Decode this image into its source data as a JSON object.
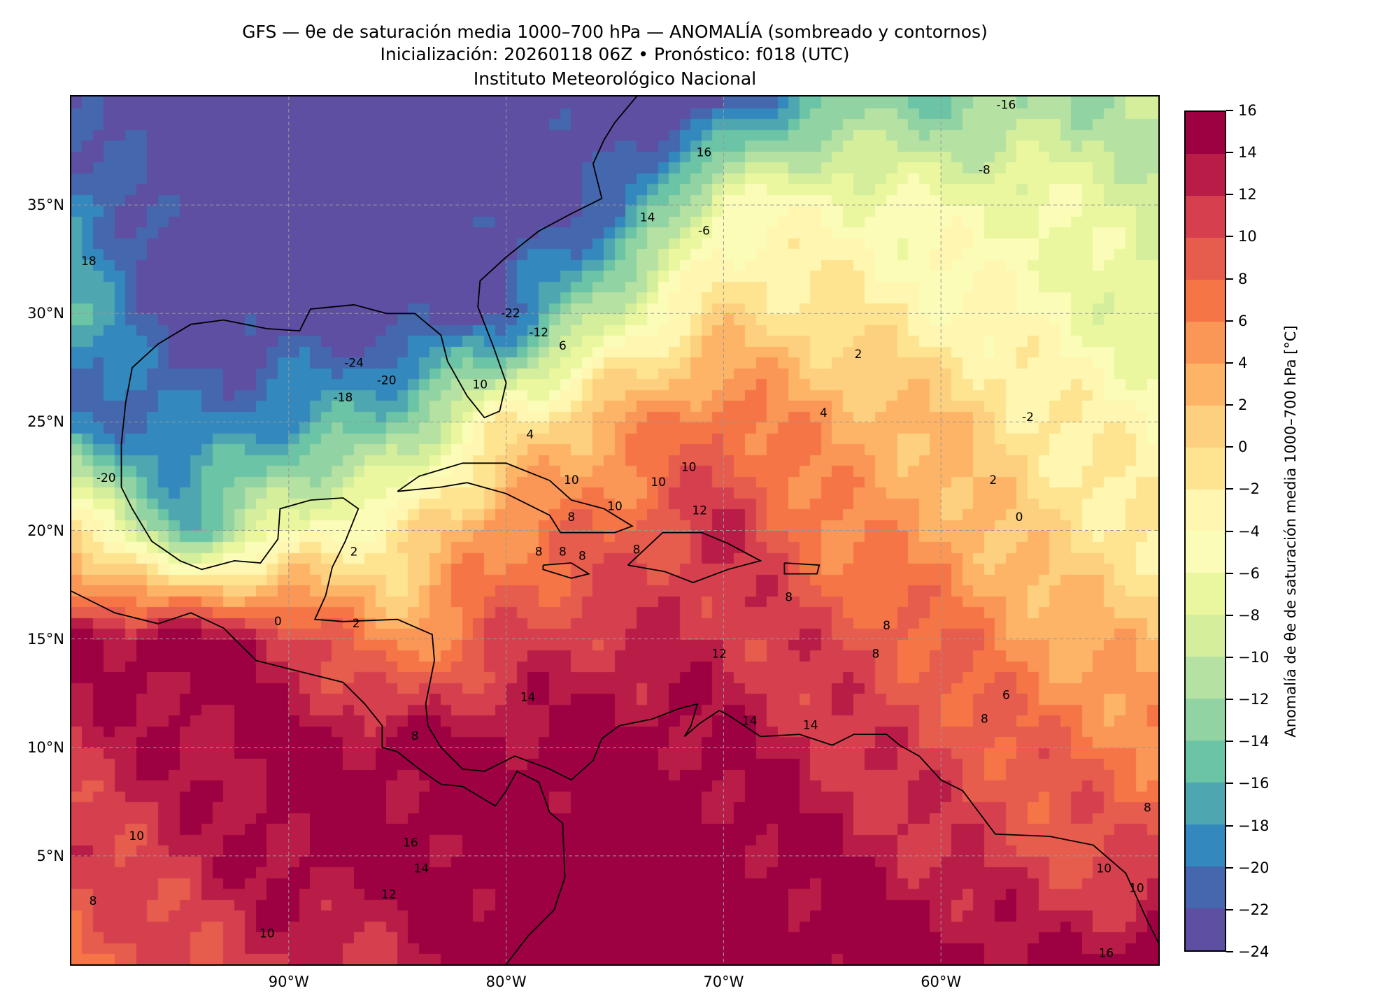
{
  "header": {
    "title_line1": "GFS — θe de saturación media 1000–700 hPa — ANOMALÍA (sombreado y contornos)",
    "title_line2": "Inicialización: 20260118 06Z   •   Pronóstico: f018 (UTC)",
    "title_line3": "Instituto Meteorológico Nacional"
  },
  "map": {
    "extent_lon": [
      -100,
      -50
    ],
    "extent_lat": [
      0,
      40
    ],
    "lon_ticks": [
      {
        "value": -90,
        "label": "90°W"
      },
      {
        "value": -80,
        "label": "80°W"
      },
      {
        "value": -70,
        "label": "70°W"
      },
      {
        "value": -60,
        "label": "60°W"
      }
    ],
    "lat_ticks": [
      {
        "value": 35,
        "label": "35°N"
      },
      {
        "value": 30,
        "label": "30°N"
      },
      {
        "value": 25,
        "label": "25°N"
      },
      {
        "value": 20,
        "label": "20°N"
      },
      {
        "value": 15,
        "label": "15°N"
      },
      {
        "value": 10,
        "label": "10°N"
      },
      {
        "value": 5,
        "label": "5°N"
      }
    ],
    "gridlines": true
  },
  "chart_data": {
    "type": "heatmap",
    "title": "GFS — θe de saturación media 1000–700 hPa — ANOMALÍA (sombreado y contornos)",
    "units": "°C",
    "grid_lons": [
      -100,
      -95,
      -90,
      -85,
      -80,
      -75,
      -70,
      -65,
      -60,
      -55,
      -50
    ],
    "grid_lats": [
      40,
      35,
      30,
      25,
      20,
      15,
      10,
      5,
      0
    ],
    "values": [
      [
        -24,
        -24,
        -24,
        -24,
        -24,
        -24,
        -24,
        -14,
        -14,
        -12,
        -11
      ],
      [
        -18,
        -24,
        -24,
        -24,
        -24,
        -22,
        -5,
        -5,
        -6,
        -6,
        -9
      ],
      [
        -16,
        -24,
        -24,
        -24,
        -22,
        -8,
        0,
        -1,
        -3,
        -5,
        -8
      ],
      [
        -20,
        -20,
        -18,
        -14,
        -2,
        4,
        8,
        4,
        2,
        -2,
        -4
      ],
      [
        0,
        -16,
        -6,
        -2,
        6,
        8,
        12,
        6,
        4,
        0,
        -2
      ],
      [
        14,
        16,
        12,
        4,
        10,
        12,
        12,
        10,
        8,
        4,
        2
      ],
      [
        12,
        14,
        15,
        15,
        15,
        16,
        14,
        12,
        10,
        8,
        6
      ],
      [
        10,
        12,
        15,
        15,
        16,
        16,
        16,
        14,
        12,
        10,
        10
      ],
      [
        8,
        10,
        12,
        12,
        16,
        16,
        16,
        16,
        16,
        14,
        16
      ]
    ],
    "levels": [
      -24,
      -22,
      -20,
      -18,
      -16,
      -14,
      -12,
      -10,
      -8,
      -6,
      -4,
      -2,
      0,
      2,
      4,
      6,
      8,
      10,
      12,
      14,
      16
    ],
    "colors": [
      "#5e4fa2",
      "#4467ae",
      "#3389bd",
      "#4ea6b0",
      "#6bc4a5",
      "#92d3a3",
      "#b5e1a2",
      "#d5ee9c",
      "#eaf79f",
      "#fafcb7",
      "#fff7b1",
      "#fee491",
      "#fdd07f",
      "#fdb466",
      "#fa9656",
      "#f57547",
      "#e65c4d",
      "#d6404e",
      "#b91d47",
      "#9e0142"
    ],
    "contour_labels": [
      {
        "lon": -57.0,
        "lat": 39.6,
        "text": "-16"
      },
      {
        "lon": -58.0,
        "lat": 36.6,
        "text": "-8"
      },
      {
        "lon": -70.9,
        "lat": 37.4,
        "text": "16"
      },
      {
        "lon": -73.5,
        "lat": 34.4,
        "text": "14"
      },
      {
        "lon": -70.9,
        "lat": 33.8,
        "text": "-6"
      },
      {
        "lon": -99.2,
        "lat": 32.4,
        "text": "18"
      },
      {
        "lon": -79.8,
        "lat": 30.0,
        "text": "-22"
      },
      {
        "lon": -78.5,
        "lat": 29.1,
        "text": "-12"
      },
      {
        "lon": -77.4,
        "lat": 28.5,
        "text": "6"
      },
      {
        "lon": -87.0,
        "lat": 27.7,
        "text": "-24"
      },
      {
        "lon": -85.5,
        "lat": 26.9,
        "text": "-20"
      },
      {
        "lon": -87.5,
        "lat": 26.1,
        "text": "-18"
      },
      {
        "lon": -81.2,
        "lat": 26.7,
        "text": "10"
      },
      {
        "lon": -63.8,
        "lat": 28.1,
        "text": "2"
      },
      {
        "lon": -65.4,
        "lat": 25.4,
        "text": "4"
      },
      {
        "lon": -56.0,
        "lat": 25.2,
        "text": "-2"
      },
      {
        "lon": -57.6,
        "lat": 22.3,
        "text": "2"
      },
      {
        "lon": -56.4,
        "lat": 20.6,
        "text": "0"
      },
      {
        "lon": -78.9,
        "lat": 24.4,
        "text": "4"
      },
      {
        "lon": -71.6,
        "lat": 22.9,
        "text": "10"
      },
      {
        "lon": -73.0,
        "lat": 22.2,
        "text": "10"
      },
      {
        "lon": -77.0,
        "lat": 22.3,
        "text": "10"
      },
      {
        "lon": -75.0,
        "lat": 21.1,
        "text": "10"
      },
      {
        "lon": -71.1,
        "lat": 20.9,
        "text": "12"
      },
      {
        "lon": -98.4,
        "lat": 22.4,
        "text": "-20"
      },
      {
        "lon": -87.0,
        "lat": 19.0,
        "text": "2"
      },
      {
        "lon": -77.0,
        "lat": 20.6,
        "text": "8"
      },
      {
        "lon": -78.5,
        "lat": 19.0,
        "text": "8"
      },
      {
        "lon": -77.4,
        "lat": 19.0,
        "text": "8"
      },
      {
        "lon": -76.5,
        "lat": 18.8,
        "text": "8"
      },
      {
        "lon": -74.0,
        "lat": 19.1,
        "text": "8"
      },
      {
        "lon": -90.5,
        "lat": 15.8,
        "text": "0"
      },
      {
        "lon": -86.9,
        "lat": 15.7,
        "text": "2"
      },
      {
        "lon": -67.0,
        "lat": 16.9,
        "text": "8"
      },
      {
        "lon": -62.5,
        "lat": 15.6,
        "text": "8"
      },
      {
        "lon": -63.0,
        "lat": 14.3,
        "text": "8"
      },
      {
        "lon": -70.2,
        "lat": 14.3,
        "text": "12"
      },
      {
        "lon": -79.0,
        "lat": 12.3,
        "text": "14"
      },
      {
        "lon": -57.0,
        "lat": 12.4,
        "text": "6"
      },
      {
        "lon": -58.0,
        "lat": 11.3,
        "text": "8"
      },
      {
        "lon": -68.8,
        "lat": 11.2,
        "text": "14"
      },
      {
        "lon": -66.0,
        "lat": 11.0,
        "text": "14"
      },
      {
        "lon": -84.2,
        "lat": 10.5,
        "text": "8"
      },
      {
        "lon": -97.0,
        "lat": 5.9,
        "text": "10"
      },
      {
        "lon": -84.4,
        "lat": 5.6,
        "text": "16"
      },
      {
        "lon": -83.9,
        "lat": 4.4,
        "text": "14"
      },
      {
        "lon": -85.4,
        "lat": 3.2,
        "text": "12"
      },
      {
        "lon": -99.0,
        "lat": 2.9,
        "text": "8"
      },
      {
        "lon": -91.0,
        "lat": 1.4,
        "text": "10"
      },
      {
        "lon": -52.5,
        "lat": 4.4,
        "text": "10"
      },
      {
        "lon": -51.0,
        "lat": 3.5,
        "text": "10"
      },
      {
        "lon": -50.5,
        "lat": 7.2,
        "text": "8"
      },
      {
        "lon": -52.4,
        "lat": 0.5,
        "text": "16"
      }
    ]
  },
  "colorbar": {
    "label": "Anomalía de θe de saturación media 1000–700 hPa [°C]",
    "ticks": [
      "−24",
      "−22",
      "−20",
      "−18",
      "−16",
      "−14",
      "−12",
      "−10",
      "−8",
      "−6",
      "−4",
      "−2",
      "0",
      "2",
      "4",
      "6",
      "8",
      "10",
      "12",
      "14",
      "16"
    ]
  }
}
